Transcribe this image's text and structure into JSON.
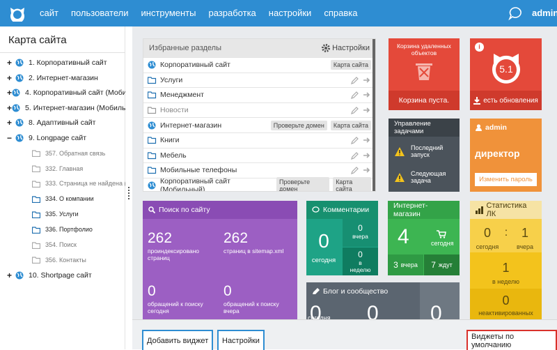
{
  "topbar": {
    "menu": [
      "сайт",
      "пользователи",
      "инструменты",
      "разработка",
      "настройки",
      "справка"
    ],
    "user": "admin"
  },
  "sitemap": {
    "title": "Карта сайта",
    "items": [
      {
        "toggle": "+",
        "label": "1. Корпоративный сайт"
      },
      {
        "toggle": "+",
        "label": "2. Интернет-магазин"
      },
      {
        "toggle": "+",
        "label": "4. Корпоративный сайт (Мобил"
      },
      {
        "toggle": "+",
        "label": "5. Интернет-магазин (Мобильн"
      },
      {
        "toggle": "+",
        "label": "8. Адаптивный сайт"
      },
      {
        "toggle": "−",
        "label": "9. Longpage сайт",
        "children": [
          {
            "label": "357. Обратная связь",
            "muted": true
          },
          {
            "label": "332. Главная",
            "muted": true
          },
          {
            "label": "333. Страница не найдена (",
            "muted": true
          },
          {
            "label": "334. О компании",
            "muted": false
          },
          {
            "label": "335. Услуги",
            "muted": false
          },
          {
            "label": "336. Портфолио",
            "muted": false
          },
          {
            "label": "354. Поиск",
            "muted": true
          },
          {
            "label": "356. Контакты",
            "muted": true
          }
        ]
      },
      {
        "toggle": "+",
        "label": "10. Shortpage сайт"
      }
    ]
  },
  "favorites": {
    "title": "Избранные разделы",
    "settings": "Настройки",
    "rows": [
      {
        "label": "Корпоративный сайт",
        "buttons": [
          "Карта сайта"
        ]
      },
      {
        "label": "Услуги"
      },
      {
        "label": "Менеджмент"
      },
      {
        "label": "Новости",
        "muted": true
      },
      {
        "label": "Интернет-магазин",
        "buttons": [
          "Проверьте домен",
          "Карта сайта"
        ]
      },
      {
        "label": "Книги"
      },
      {
        "label": "Мебель"
      },
      {
        "label": "Мобильные телефоны"
      },
      {
        "label": "Корпоративный сайт (Мобильный)",
        "buttons": [
          "Проверьте домен",
          "Карта сайта"
        ]
      }
    ]
  },
  "trash": {
    "title": "Корзина удаленных объектов",
    "status": "Корзина пуста."
  },
  "updates": {
    "version": "5.1",
    "link": "есть обновления"
  },
  "tasks": {
    "title": "Управление задачами",
    "items": [
      "Последний запуск",
      "Следующая задача"
    ]
  },
  "user_card": {
    "login": "admin",
    "role": "директор",
    "button": "Изменить пароль"
  },
  "search": {
    "title": "Поиск по сайту",
    "stats": [
      {
        "value": 262,
        "label": "проиндексировано страниц"
      },
      {
        "value": 262,
        "label": "страниц в sitemap.xml"
      },
      {
        "value": 0,
        "label": "обращений к поиску сегодня"
      },
      {
        "value": 0,
        "label": "обращений к поиску вчера"
      }
    ]
  },
  "comments": {
    "title": "Комментарии",
    "today": {
      "value": 0,
      "label": "сегодня"
    },
    "yesterday": {
      "value": 0,
      "label": "вчера"
    },
    "week": {
      "value": 0,
      "label": "в неделю"
    }
  },
  "shop": {
    "title": "Интернет-магазин",
    "today": {
      "value": 4,
      "label": "сегодня"
    },
    "yesterday": {
      "value": 3,
      "label": "вчера"
    },
    "waiting": {
      "value": 7,
      "label": "ждут"
    }
  },
  "lk": {
    "title": "Статистика ЛК",
    "today": {
      "value": 0,
      "label": "сегодня"
    },
    "separator": ":",
    "yesterday": {
      "value": 1,
      "label": "вчера"
    },
    "week": {
      "value": 1,
      "label": "в неделю"
    },
    "inactive": {
      "value": 0,
      "label": "неактивированных"
    }
  },
  "blog": {
    "title": "Блог и сообщество",
    "stats": [
      {
        "value": 0,
        "label": "сегодня"
      },
      {
        "value": 0
      },
      {
        "value": 0
      }
    ]
  },
  "toolbar": {
    "add": "Добавить виджет",
    "settings": "Настройки",
    "defaults": "Виджеты по умолчанию"
  }
}
